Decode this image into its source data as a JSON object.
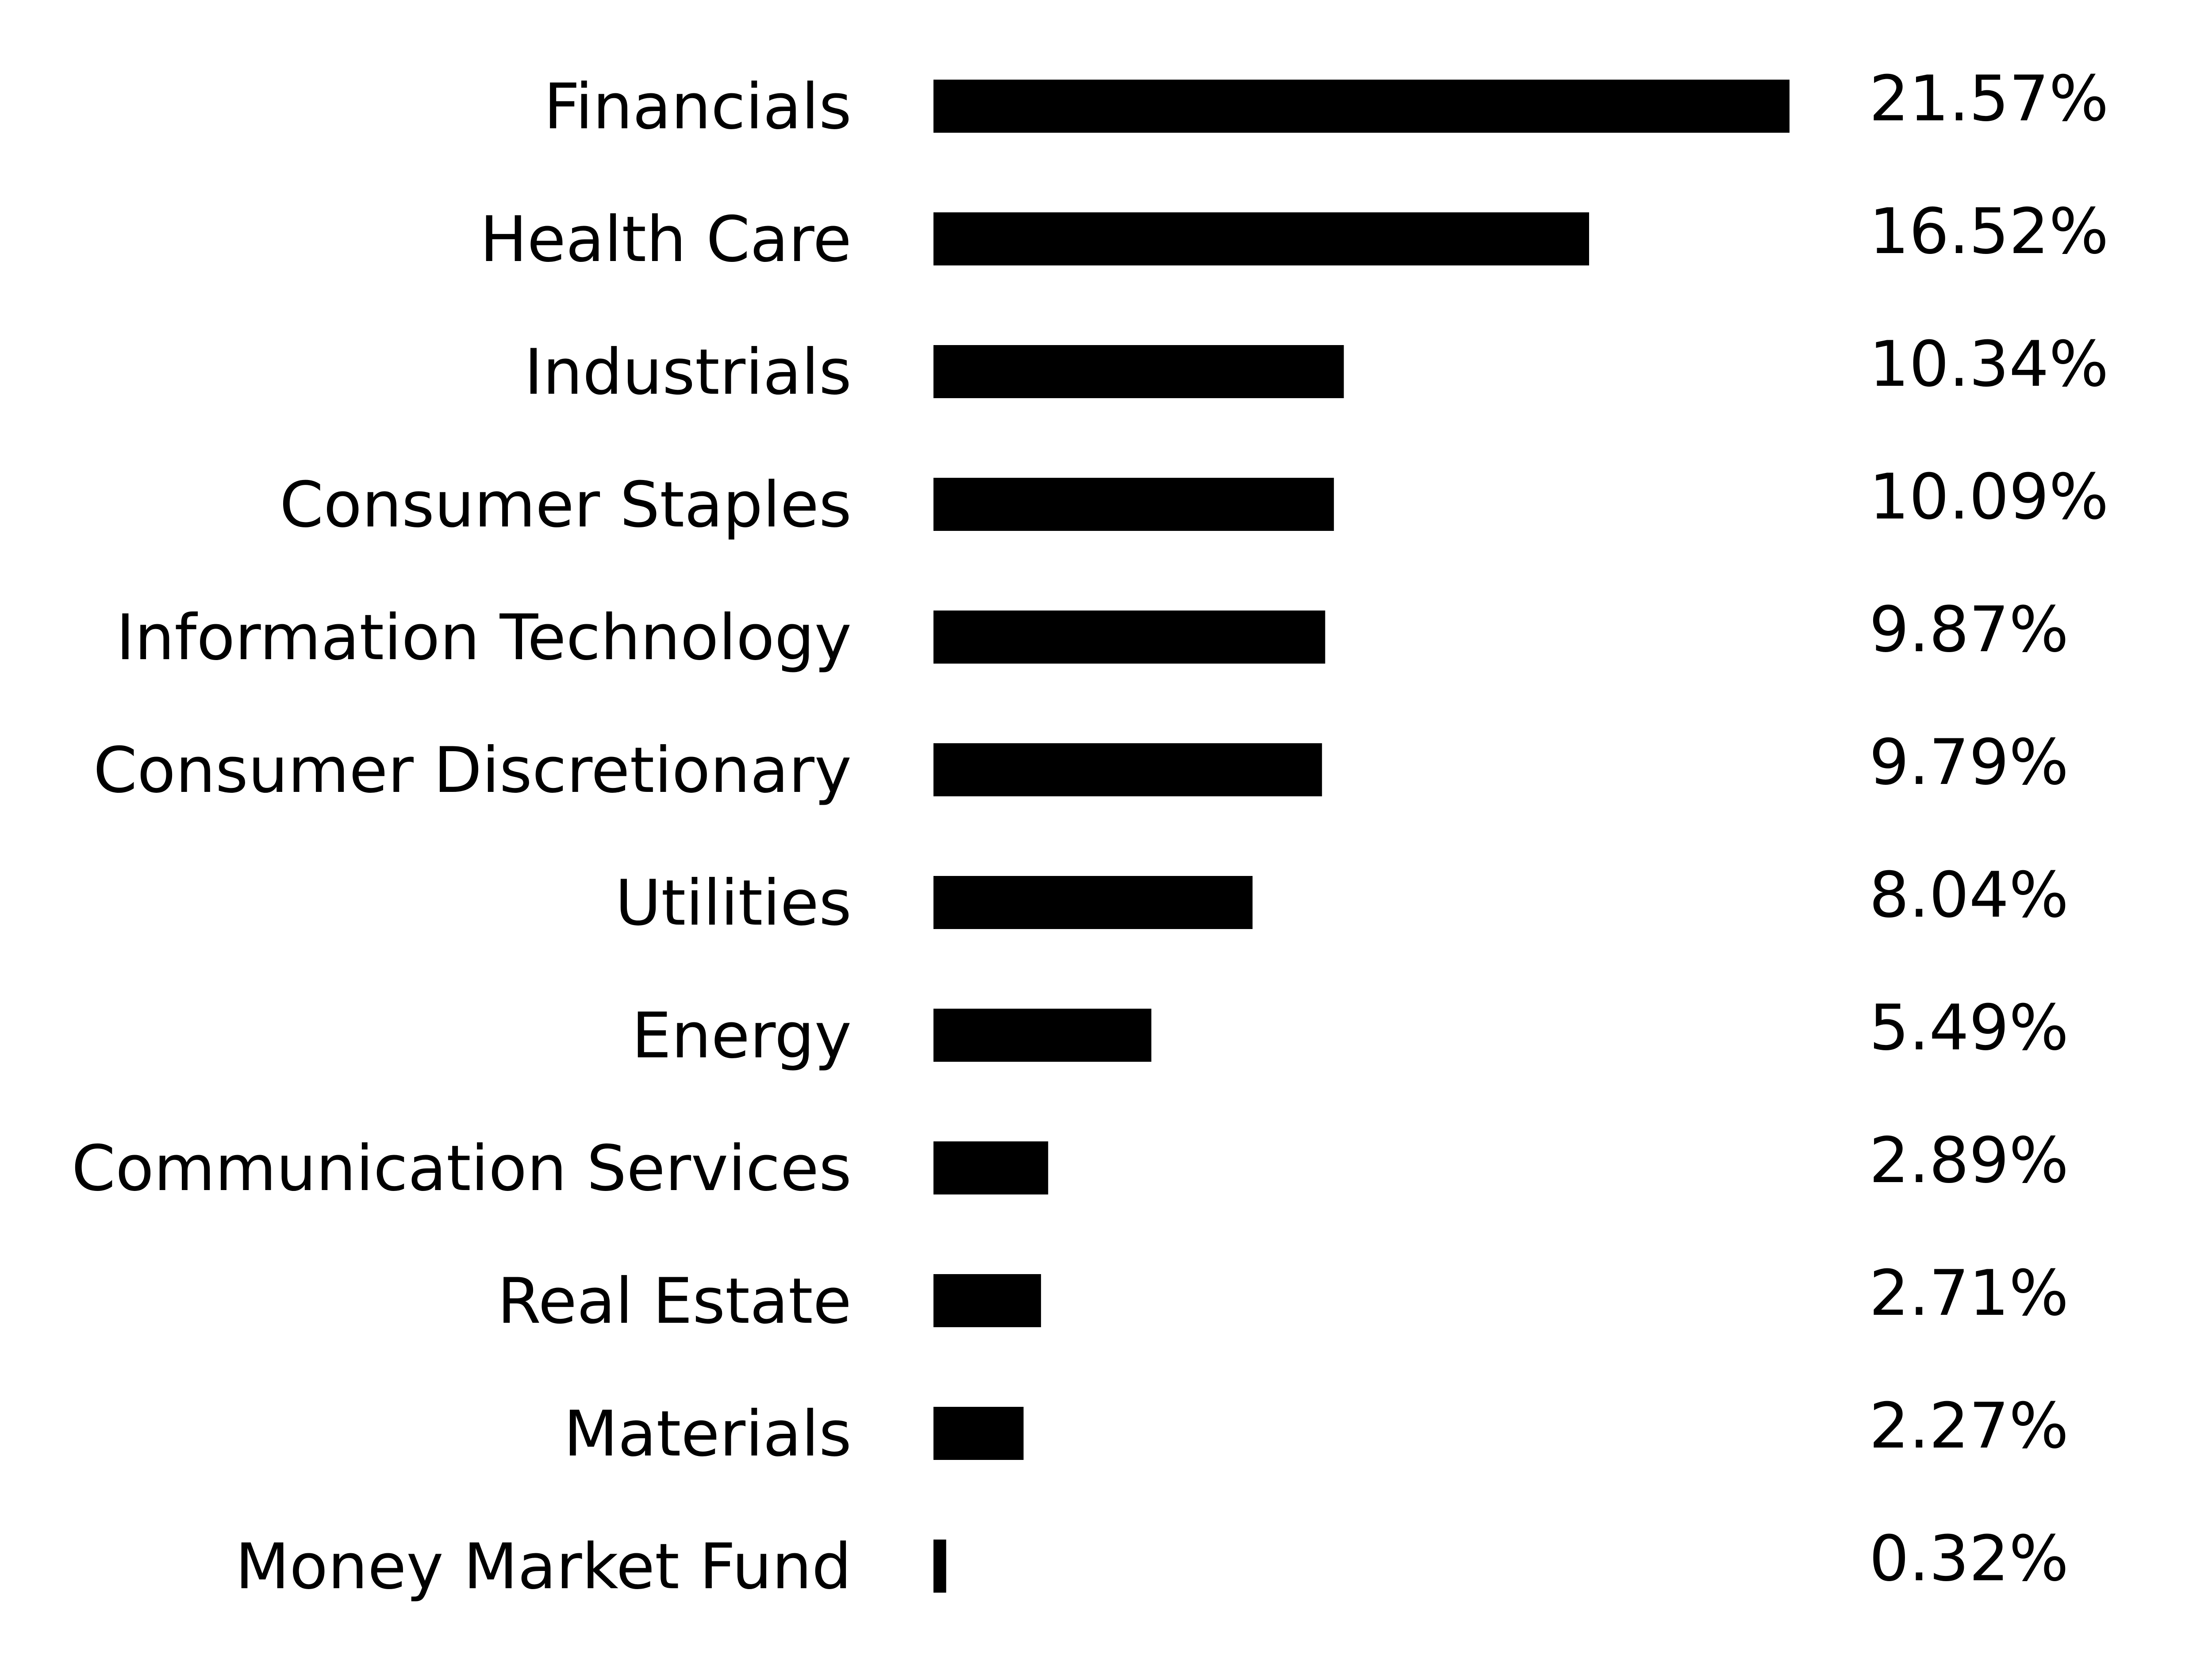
{
  "chart_data": {
    "type": "bar",
    "orientation": "horizontal",
    "categories": [
      "Financials",
      "Health Care",
      "Industrials",
      "Consumer Staples",
      "Information Technology",
      "Consumer Discretionary",
      "Utilities",
      "Energy",
      "Communication Services",
      "Real Estate",
      "Materials",
      "Money Market Fund"
    ],
    "values": [
      21.57,
      16.52,
      10.34,
      10.09,
      9.87,
      9.79,
      8.04,
      5.49,
      2.89,
      2.71,
      2.27,
      0.32
    ],
    "value_labels": [
      "21.57%",
      "16.52%",
      "10.34%",
      "10.09%",
      "9.87%",
      "9.79%",
      "8.04%",
      "5.49%",
      "2.89%",
      "2.71%",
      "2.27%",
      "0.32%"
    ],
    "bar_color": "#000000",
    "xlim": [
      0,
      21.57
    ],
    "grid": false,
    "legend": "none"
  }
}
